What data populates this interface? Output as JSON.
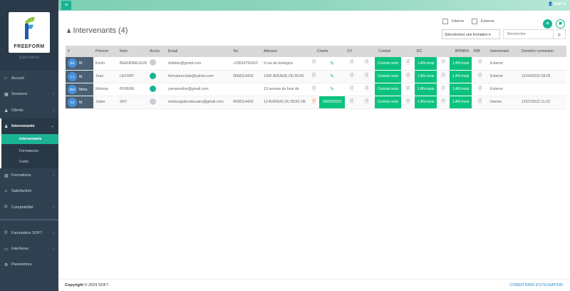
{
  "sidebar": {
    "brand": "FREEFORM",
    "role": "Super Admin",
    "items": [
      {
        "label": "Accueil",
        "icon": "home-icon"
      },
      {
        "label": "Sessions",
        "icon": "calendar-icon"
      },
      {
        "label": "Clients",
        "icon": "users-icon"
      },
      {
        "label": "Intervenants",
        "icon": "group-icon"
      },
      {
        "label": "Formations",
        "icon": "books-icon"
      },
      {
        "label": "Satisfaction",
        "icon": "chart-icon"
      },
      {
        "label": "Comptabilité",
        "icon": "copyright-icon"
      },
      {
        "label": "Facturation SOF7",
        "icon": "copyright-icon"
      },
      {
        "label": "Interfaces",
        "icon": "monitor-icon"
      },
      {
        "label": "Paramètres",
        "icon": "gears-icon"
      }
    ],
    "sub_items": [
      {
        "label": "Intervenants"
      },
      {
        "label": "Formateurs"
      },
      {
        "label": "Carte"
      }
    ]
  },
  "topbar": {
    "user": "Sof7"
  },
  "page": {
    "title": "Intervenants (4)",
    "filter_internal": "Interne",
    "filter_external": "Externe",
    "formation_select": "Sélectionnez une formation",
    "search_placeholder": "Rechercher"
  },
  "table": {
    "headers": {
      "id": "#",
      "first": "Prénom",
      "last": "Nom",
      "access": "Accès",
      "email": "Email",
      "tel": "Tel.",
      "address": "Adresse",
      "charte": "Charte",
      "cv": "CV",
      "contrat": "Contrat",
      "rc": "RC",
      "bpinrs": "BPINRS",
      "rib": "RIB",
      "type": "Intervenant",
      "last_login": "Dernière connexion"
    },
    "rows": [
      {
        "initials": "BK",
        "civ": "M.",
        "first": "Kevin",
        "last": "BEAUPARLEUR",
        "access": false,
        "email": "drdidier@gmail.com",
        "tel": "+33624765410",
        "address": "9 rue de bretagne",
        "charte": "",
        "contrat": "Contrat mois",
        "rc": "1 AN mois",
        "bpinrs": "1 AN mois",
        "type": "Externe",
        "last_login": ""
      },
      {
        "initials": "LJ",
        "civ": "M.",
        "first": "Jean",
        "last": "LEFORT",
        "access": true,
        "email": "formateur.inde@yahoo.com",
        "tel": "0658114403",
        "address": "1300 AVENUE DU BOIS",
        "charte": "",
        "contrat": "Contrat mois",
        "rc": "1 AN mois",
        "bpinrs": "1 AN mois",
        "type": "Externe",
        "last_login": "21/04/2022 08:05"
      },
      {
        "initials": "RM",
        "civ": "Mme",
        "first": "Melissa",
        "last": "RIVIERE",
        "access": true,
        "email": "yamamelise@gmail.com",
        "tel": "",
        "address": "13 avenue du bois de",
        "charte": "",
        "contrat": "Contrat mois",
        "rc": "1 AN mois",
        "bpinrs": "1 AN mois",
        "type": "Externe",
        "last_login": ""
      },
      {
        "initials": "SJ",
        "civ": "M.",
        "first": "Julien",
        "last": "SKY",
        "access": false,
        "email": "melissajuliendrouaire@gmail.com",
        "tel": "0658114403",
        "address": "13 AVENUE DU BOIS DE",
        "charte": "26/09/2023",
        "contrat": "Contrat mois",
        "rc": "1 AN mois",
        "bpinrs": "1 AN mois",
        "type": "Interne",
        "last_login": "12/07/2022 11:22"
      }
    ]
  },
  "footer": {
    "copyright_label": "Copyright",
    "copyright_text": "© 2024 SOF7.",
    "terms": "CONDITIONS D'UTILISATION"
  },
  "colors": {
    "accent": "#1ab394",
    "green_cell": "#0cc27e",
    "sidebar": "#2f4050",
    "avatar": "#4a90d9"
  }
}
